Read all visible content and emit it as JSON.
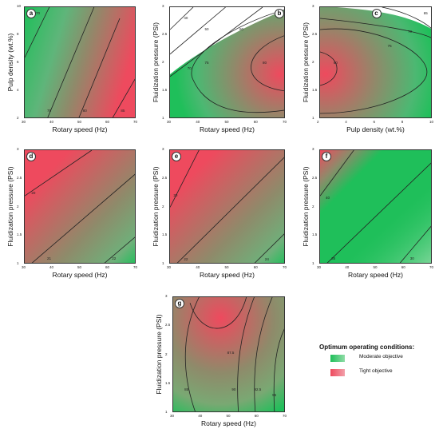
{
  "chart_data": [
    {
      "id": "a",
      "type": "contour",
      "xlabel": "Rotary speed (Hz)",
      "ylabel": "Pulp density (wt.%)",
      "xlim": [
        30,
        70
      ],
      "ylim": [
        2,
        10
      ],
      "xticks": [
        30,
        40,
        50,
        60,
        70
      ],
      "yticks": [
        2,
        4,
        6,
        8,
        10
      ],
      "contour_levels": [
        "70",
        "75",
        "80",
        "85"
      ],
      "green_region": "left",
      "red_region": "right"
    },
    {
      "id": "b",
      "type": "contour",
      "xlabel": "Rotary speed (Hz)",
      "ylabel": "Fluidization pressure (PSI)",
      "xlim": [
        30,
        70
      ],
      "ylim": [
        1,
        3
      ],
      "xticks": [
        30,
        40,
        50,
        60,
        70
      ],
      "yticks": [
        1,
        1.5,
        2,
        2.5,
        3
      ],
      "contour_levels": [
        "40",
        "50",
        "60",
        "70",
        "75",
        "80"
      ],
      "green_region": "outer",
      "red_region": "center-right"
    },
    {
      "id": "c",
      "type": "contour",
      "xlabel": "Pulp density (wt.%)",
      "ylabel": "Fluidization pressure (PSI)",
      "xlim": [
        2,
        10
      ],
      "ylim": [
        1,
        3
      ],
      "xticks": [
        2,
        4,
        6,
        8,
        10
      ],
      "yticks": [
        1,
        1.5,
        2,
        2.5,
        3
      ],
      "contour_levels": [
        "65",
        "70",
        "75",
        "80"
      ],
      "green_region": "outer",
      "red_region": "left"
    },
    {
      "id": "d",
      "type": "contour",
      "xlabel": "Rotary speed (Hz)",
      "ylabel": "Fluidization pressure (PSI)",
      "xlim": [
        30,
        70
      ],
      "ylim": [
        1,
        3
      ],
      "xticks": [
        30,
        40,
        50,
        60,
        70
      ],
      "yticks": [
        1,
        1.5,
        2,
        2.5,
        3
      ],
      "contour_levels": [
        "20",
        "21",
        "22"
      ],
      "green_region": "bottom-right",
      "red_region": "top-left"
    },
    {
      "id": "e",
      "type": "contour",
      "xlabel": "Rotary speed (Hz)",
      "ylabel": "Fluidization pressure (PSI)",
      "xlim": [
        30,
        70
      ],
      "ylim": [
        1,
        3
      ],
      "xticks": [
        30,
        40,
        50,
        60,
        70
      ],
      "yticks": [
        1,
        1.5,
        2,
        2.5,
        3
      ],
      "contour_levels": [
        "20",
        "22",
        "24"
      ],
      "green_region": "bottom-right",
      "red_region": "top-left"
    },
    {
      "id": "f",
      "type": "contour",
      "xlabel": "Rotary speed (Hz)",
      "ylabel": "Fluidization pressure (PSI)",
      "xlim": [
        30,
        70
      ],
      "ylim": [
        1,
        3
      ],
      "xticks": [
        30,
        40,
        50,
        60,
        70
      ],
      "yticks": [
        1,
        1.5,
        2,
        2.5,
        3
      ],
      "contour_levels": [
        "30",
        "35",
        "40"
      ],
      "green_region": "top-right",
      "red_region": "top-left"
    },
    {
      "id": "g",
      "type": "contour",
      "xlabel": "Rotary speed (Hz)",
      "ylabel": "Fluidization pressure (PSI)",
      "xlim": [
        30,
        70
      ],
      "ylim": [
        1,
        3
      ],
      "xticks": [
        30,
        40,
        50,
        60,
        70
      ],
      "yticks": [
        1,
        1.5,
        2,
        2.5,
        3
      ],
      "contour_levels": [
        "80",
        "85",
        "87.5",
        "90",
        "92.5",
        "95"
      ],
      "green_region": "right",
      "red_region": "top-center"
    }
  ],
  "legend": {
    "title": "Optimum operating conditions:",
    "items": [
      {
        "label": "Moderate objective",
        "color": "#1fbf5a"
      },
      {
        "label": "Tight objective",
        "color": "#ee4a5e"
      }
    ]
  },
  "colors": {
    "green": "#1fbf5a",
    "red": "#ee4a5e",
    "mid": "#8f8a6a"
  }
}
